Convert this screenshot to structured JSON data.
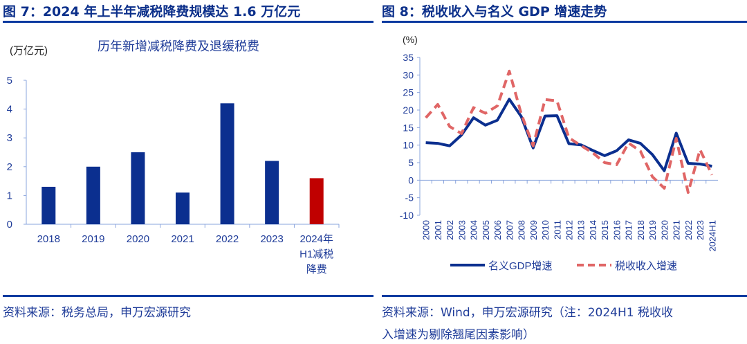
{
  "left": {
    "header": "图 7：2024 年上半年减税降费规模达 1.6 万亿元",
    "source": "资料来源：税务总局，申万宏源研究"
  },
  "right": {
    "header": "图 8：税收收入与名义 GDP 增速走势",
    "source_line1": "资料来源：Wind，申万宏源研究（注：2024H1  税收收",
    "source_line2": "入增速为剔除翘尾因素影响）"
  },
  "colors": {
    "bar": "#0b2f8f",
    "highlight": "#c00000",
    "gdp": "#0b2f8f",
    "tax": "#e06666",
    "axis": "#8aa4dd"
  },
  "chart_data": [
    {
      "type": "bar",
      "title": "历年新增减税降费及退缓税费",
      "ylabel": "(万亿元)",
      "categories": [
        "2018",
        "2019",
        "2020",
        "2021",
        "2022",
        "2023",
        "2024年H1减税降费"
      ],
      "category_lines": [
        [
          "2018"
        ],
        [
          "2019"
        ],
        [
          "2020"
        ],
        [
          "2021"
        ],
        [
          "2022"
        ],
        [
          "2023"
        ],
        [
          "2024年",
          "H1减税",
          "降费"
        ]
      ],
      "values": [
        1.3,
        2.0,
        2.5,
        1.1,
        4.2,
        2.2,
        1.6
      ],
      "highlight_index": 6,
      "ylim": [
        0,
        5
      ],
      "yticks": [
        0,
        1,
        2,
        3,
        4,
        5
      ],
      "grid": false
    },
    {
      "type": "line",
      "ylabel": "(%)",
      "ylim": [
        -10,
        35
      ],
      "yticks": [
        -10,
        -5,
        0,
        5,
        10,
        15,
        20,
        25,
        30,
        35
      ],
      "grid": false,
      "legend": "bottom",
      "x": [
        "2000",
        "2001",
        "2002",
        "2003",
        "2004",
        "2005",
        "2006",
        "2007",
        "2008",
        "2009",
        "2010",
        "2011",
        "2012",
        "2013",
        "2014",
        "2015",
        "2016",
        "2017",
        "2018",
        "2019",
        "2020",
        "2021",
        "2022",
        "2023",
        "2024H1"
      ],
      "series": [
        {
          "name": "名义GDP增速",
          "style": "solid",
          "values": [
            10.7,
            10.5,
            9.8,
            12.9,
            17.8,
            15.7,
            17.1,
            23.1,
            18.2,
            9.2,
            18.3,
            18.4,
            10.4,
            10.1,
            8.5,
            7.0,
            8.4,
            11.5,
            10.5,
            7.3,
            2.7,
            13.4,
            4.8,
            4.6,
            4.0
          ]
        },
        {
          "name": "税收收入增速",
          "style": "dashed",
          "values": [
            17.8,
            21.6,
            15.3,
            13.3,
            20.7,
            19.1,
            21.2,
            31.1,
            19.0,
            9.8,
            23.0,
            22.6,
            12.1,
            9.9,
            7.8,
            5.0,
            4.4,
            10.6,
            8.3,
            1.0,
            -2.3,
            11.9,
            -3.5,
            8.7,
            1.5
          ]
        }
      ]
    }
  ]
}
